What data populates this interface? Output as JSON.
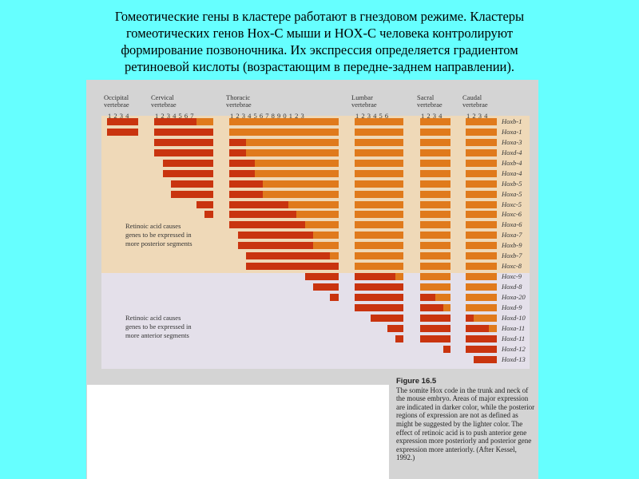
{
  "title_lines": [
    "Гомеотические гены  в кластере работают в гнездовом режиме.  Кластеры",
    "гомеотических генов Hox-C мыши и HOX-C человека контролируют",
    "формирование  позвоночника. Их экспрессия определяется градиентом",
    "ретиноевой кислоты (возрастающим  в передне-заднем направлении)."
  ],
  "colors": {
    "background": "#66ffff",
    "dark": "#c9340f",
    "light": "#e07a1c"
  },
  "groups": [
    {
      "name": "Occipital",
      "sub": "vertebrae",
      "numbers": "1 2 3 4",
      "count": 4
    },
    {
      "name": "Cervical",
      "sub": "vertebrae",
      "numbers": "1 2 3 4 5 6 7",
      "count": 7
    },
    {
      "name": "Thoracic",
      "sub": "vertebrae",
      "numbers": "1 2 3 4 5 6 7 8 9 0 1 2 3",
      "count": 13
    },
    {
      "name": "Lumbar",
      "sub": "vertebrae",
      "numbers": "1 2 3 4 5 6",
      "count": 6
    },
    {
      "name": "Sacral",
      "sub": "vertebrae",
      "numbers": "1 2 3 4",
      "count": 4
    },
    {
      "name": "Caudal",
      "sub": "vertebrae",
      "numbers": "1 2 3 4",
      "count": 4
    }
  ],
  "genes": [
    {
      "name": "Hoxb-1",
      "start": 1,
      "dark_end": 9
    },
    {
      "name": "Hoxa-1",
      "start": 1,
      "dark_end": 11
    },
    {
      "name": "Hoxa-3",
      "start": 5,
      "dark_end": 13
    },
    {
      "name": "Hoxd-4",
      "start": 5,
      "dark_end": 13
    },
    {
      "name": "Hoxb-4",
      "start": 6,
      "dark_end": 14
    },
    {
      "name": "Hoxa-4",
      "start": 6,
      "dark_end": 14
    },
    {
      "name": "Hoxb-5",
      "start": 7,
      "dark_end": 15
    },
    {
      "name": "Hoxa-5",
      "start": 7,
      "dark_end": 15
    },
    {
      "name": "Hoxc-5",
      "start": 10,
      "dark_end": 18
    },
    {
      "name": "Hoxc-6",
      "start": 11,
      "dark_end": 19
    },
    {
      "name": "Hoxa-6",
      "start": 12,
      "dark_end": 20
    },
    {
      "name": "Hoxa-7",
      "start": 13,
      "dark_end": 21
    },
    {
      "name": "Hoxb-9",
      "start": 13,
      "dark_end": 21
    },
    {
      "name": "Hoxb-7",
      "start": 14,
      "dark_end": 23
    },
    {
      "name": "Hoxc-8",
      "start": 14,
      "dark_end": 24
    },
    {
      "name": "Hoxc-9",
      "start": 21,
      "dark_end": 29
    },
    {
      "name": "Hoxd-8",
      "start": 22,
      "dark_end": 30
    },
    {
      "name": "Hoxa-20",
      "start": 24,
      "dark_end": 32
    },
    {
      "name": "Hoxd-9",
      "start": 25,
      "dark_end": 33
    },
    {
      "name": "Hoxd-10",
      "start": 27,
      "dark_end": 35
    },
    {
      "name": "Hoxa-11",
      "start": 29,
      "dark_end": 37
    },
    {
      "name": "Hoxd-11",
      "start": 30,
      "dark_end": 38
    },
    {
      "name": "Hoxd-12",
      "start": 34,
      "dark_end": 38
    },
    {
      "name": "Hoxd-13",
      "start": 36,
      "dark_end": 38
    }
  ],
  "notes": {
    "posterior": [
      "Retinoic acid causes",
      "genes to be expressed in",
      "more posterior segments"
    ],
    "anterior": [
      "Retinoic acid causes",
      "genes to be expressed in",
      "more anterior segments"
    ]
  },
  "caption": {
    "heading": "Figure 16.5",
    "text": "The somite Hox code in the trunk and neck of the mouse embryo. Areas of major expression are indicated in darker color, while the posterior regions of expression are not as defined as might be suggested by the lighter color. The effect of retinoic acid is to push anterior gene expression more posteriorly and posterior gene expression more anteriorly. (After Kessel, 1992.)"
  }
}
